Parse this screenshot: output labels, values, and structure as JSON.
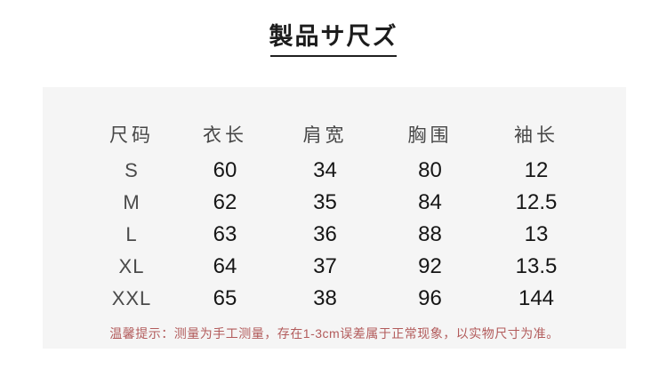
{
  "title": "製品サ尺ズ",
  "size_chart": {
    "headers": [
      "尺码",
      "衣长",
      "肩宽",
      "胸围",
      "袖长"
    ],
    "rows": [
      {
        "size": "S",
        "values": [
          "60",
          "34",
          "80",
          "12"
        ]
      },
      {
        "size": "M",
        "values": [
          "62",
          "35",
          "84",
          "12.5"
        ]
      },
      {
        "size": "L",
        "values": [
          "63",
          "36",
          "88",
          "13"
        ]
      },
      {
        "size": "XL",
        "values": [
          "64",
          "37",
          "92",
          "13.5"
        ]
      },
      {
        "size": "XXL",
        "values": [
          "65",
          "38",
          "96",
          "144"
        ]
      }
    ]
  },
  "note": "温馨提示：测量为手工测量，存在1-3cm误差属于正常现象，以实物尺寸为准。",
  "colors": {
    "page_background": "#ffffff",
    "panel_background": "#f5f5f5",
    "title_text": "#1c1c1c",
    "header_text": "#474747",
    "value_text": "#161616",
    "note_text": "#b25b5b"
  }
}
